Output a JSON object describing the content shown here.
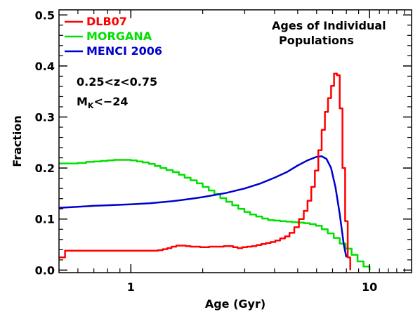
{
  "chart_data": {
    "type": "line",
    "xscale": "log",
    "xlabel": "Age (Gyr)",
    "ylabel": "Fraction",
    "xlim": [
      0.5,
      15
    ],
    "ylim": [
      -0.005,
      0.51
    ],
    "xticks": [
      {
        "value": 1,
        "label": "1"
      },
      {
        "value": 10,
        "label": "10"
      }
    ],
    "yticks": [
      {
        "value": 0.0,
        "label": "0.0"
      },
      {
        "value": 0.1,
        "label": "0.1"
      },
      {
        "value": 0.2,
        "label": "0.2"
      },
      {
        "value": 0.3,
        "label": "0.3"
      },
      {
        "value": 0.4,
        "label": "0.4"
      },
      {
        "value": 0.5,
        "label": "0.5"
      }
    ],
    "grid": false,
    "legend_position": "top-left",
    "annotations": {
      "title_line1": "Ages of Individual",
      "title_line2": "Populations",
      "redshift": "0.25<z<0.75",
      "mag_main": "M",
      "mag_sub": "K",
      "mag_rest": "<−24"
    },
    "series": [
      {
        "name": "DLB07",
        "color": "#ff0000",
        "style": "step",
        "x": [
          0.5,
          0.53,
          1.3,
          1.36,
          1.42,
          1.48,
          1.55,
          1.62,
          1.7,
          1.78,
          1.86,
          1.95,
          2.04,
          2.13,
          2.23,
          2.34,
          2.45,
          2.56,
          2.68,
          2.8,
          2.93,
          3.07,
          3.21,
          3.36,
          3.52,
          3.68,
          3.85,
          4.03,
          4.22,
          4.42,
          4.62,
          4.84,
          5.06,
          5.3,
          5.5,
          5.7,
          5.9,
          6.1,
          6.3,
          6.5,
          6.7,
          6.9,
          7.1,
          7.3,
          7.5,
          7.7,
          7.9,
          8.1,
          8.3
        ],
        "y": [
          0.025,
          0.038,
          0.039,
          0.041,
          0.043,
          0.046,
          0.048,
          0.048,
          0.047,
          0.046,
          0.046,
          0.045,
          0.045,
          0.046,
          0.046,
          0.046,
          0.047,
          0.047,
          0.045,
          0.043,
          0.045,
          0.046,
          0.047,
          0.049,
          0.051,
          0.053,
          0.055,
          0.058,
          0.062,
          0.066,
          0.073,
          0.084,
          0.1,
          0.116,
          0.136,
          0.163,
          0.195,
          0.235,
          0.275,
          0.31,
          0.337,
          0.361,
          0.385,
          0.382,
          0.317,
          0.2,
          0.096,
          0.025,
          0.0
        ]
      },
      {
        "name": "MORGANA",
        "color": "#00e000",
        "style": "step",
        "x": [
          0.5,
          0.55,
          0.6,
          0.65,
          0.7,
          0.75,
          0.8,
          0.85,
          0.9,
          0.95,
          1.0,
          1.06,
          1.12,
          1.19,
          1.26,
          1.33,
          1.41,
          1.5,
          1.59,
          1.68,
          1.78,
          1.89,
          2.0,
          2.12,
          2.24,
          2.37,
          2.51,
          2.66,
          2.82,
          2.99,
          3.16,
          3.35,
          3.55,
          3.76,
          3.98,
          4.22,
          4.47,
          4.73,
          5.01,
          5.31,
          5.62,
          5.96,
          6.31,
          6.68,
          7.08,
          7.5,
          7.94,
          8.41,
          8.91,
          9.44,
          10.0
        ],
        "y": [
          0.209,
          0.209,
          0.21,
          0.212,
          0.213,
          0.214,
          0.215,
          0.216,
          0.216,
          0.216,
          0.215,
          0.213,
          0.211,
          0.208,
          0.204,
          0.2,
          0.196,
          0.192,
          0.187,
          0.181,
          0.176,
          0.17,
          0.163,
          0.156,
          0.149,
          0.141,
          0.134,
          0.127,
          0.12,
          0.114,
          0.109,
          0.105,
          0.101,
          0.098,
          0.097,
          0.096,
          0.095,
          0.094,
          0.093,
          0.092,
          0.09,
          0.087,
          0.08,
          0.072,
          0.063,
          0.052,
          0.042,
          0.03,
          0.017,
          0.007,
          0.0
        ]
      },
      {
        "name": "MENCI 2006",
        "color": "#0000cc",
        "style": "line",
        "x": [
          0.5,
          0.6,
          0.7,
          0.8,
          1.0,
          1.2,
          1.5,
          1.8,
          2.0,
          2.5,
          3.0,
          3.5,
          4.0,
          4.5,
          5.0,
          5.5,
          6.0,
          6.3,
          6.6,
          6.9,
          7.2,
          7.5,
          7.8,
          8.0
        ],
        "y": [
          0.122,
          0.124,
          0.126,
          0.127,
          0.129,
          0.131,
          0.135,
          0.14,
          0.143,
          0.151,
          0.16,
          0.17,
          0.181,
          0.192,
          0.205,
          0.215,
          0.222,
          0.223,
          0.218,
          0.2,
          0.162,
          0.11,
          0.05,
          0.025
        ]
      }
    ]
  }
}
